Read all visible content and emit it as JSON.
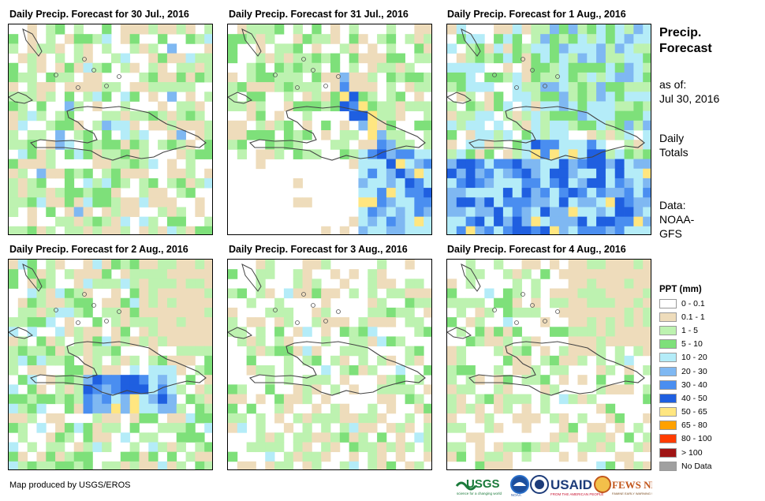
{
  "panels": [
    {
      "title": "Daily Precip. Forecast for 30 Jul., 2016",
      "seed": 11,
      "profile": "d1"
    },
    {
      "title": "Daily Precip. Forecast for 31 Jul., 2016",
      "seed": 23,
      "profile": "d2"
    },
    {
      "title": "Daily Precip. Forecast for 1 Aug., 2016",
      "seed": 37,
      "profile": "d3"
    },
    {
      "title": "Daily Precip. Forecast for 2 Aug., 2016",
      "seed": 41,
      "profile": "d4"
    },
    {
      "title": "Daily Precip. Forecast for 3 Aug., 2016",
      "seed": 53,
      "profile": "d5"
    },
    {
      "title": "Daily Precip. Forecast for 4 Aug., 2016",
      "seed": 67,
      "profile": "d6"
    }
  ],
  "sidebar": {
    "heading_line1": "Precip.",
    "heading_line2": "Forecast",
    "asof_line1": "as of:",
    "asof_line2": "Jul 30, 2016",
    "totals_line1": "Daily",
    "totals_line2": "Totals",
    "source_line1": "Data:",
    "source_line2": "NOAA-",
    "source_line3": "GFS"
  },
  "legend": {
    "title": "PPT (mm)",
    "items": [
      {
        "label": "0 - 0.1",
        "color": "#ffffff"
      },
      {
        "label": "0.1 - 1",
        "color": "#eedcbb"
      },
      {
        "label": "1 - 5",
        "color": "#bdf2b0"
      },
      {
        "label": "5 - 10",
        "color": "#7ee07a"
      },
      {
        "label": "10 - 20",
        "color": "#b4ecf8"
      },
      {
        "label": "20 - 30",
        "color": "#7fb8f2"
      },
      {
        "label": "30 - 40",
        "color": "#4a8ef0"
      },
      {
        "label": "40 - 50",
        "color": "#1f5fe0"
      },
      {
        "label": "50 - 65",
        "color": "#ffe680"
      },
      {
        "label": "65 - 80",
        "color": "#ffa100"
      },
      {
        "label": "80 - 100",
        "color": "#ff3c00"
      },
      {
        "label": "> 100",
        "color": "#a01414"
      },
      {
        "label": "No Data",
        "color": "#a0a0a0"
      }
    ]
  },
  "footer": {
    "credit": "Map produced by USGS/EROS",
    "logos": [
      "USGS",
      "NOAA",
      "USAID",
      "FEWS NET"
    ]
  }
}
